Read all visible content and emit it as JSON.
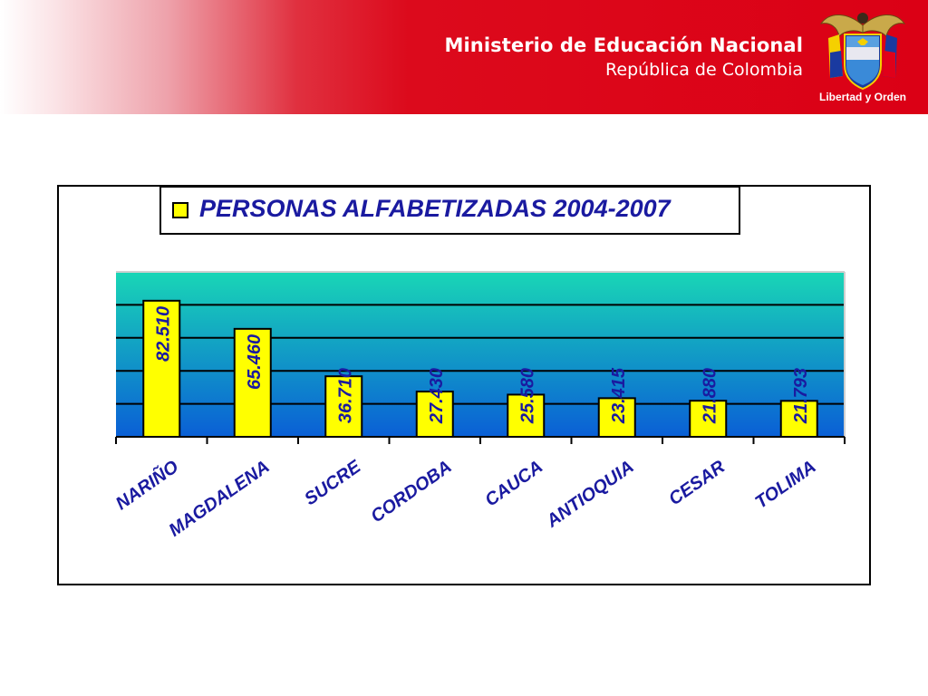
{
  "header": {
    "ministry_name": "Ministerio de Educación Nacional",
    "country": "República de Colombia",
    "motto": "Libertad y Orden",
    "emblem_icon": "colombia-coat-of-arms-icon",
    "colors": {
      "banner": "#db0015",
      "text": "#ffffff"
    }
  },
  "chart_data": {
    "type": "bar",
    "legend": "PERSONAS ALFABETIZADAS 2004-2007",
    "categories": [
      "NARIÑO",
      "MAGDALENA",
      "SUCRE",
      "CORDOBA",
      "CAUCA",
      "ANTIOQUIA",
      "CESAR",
      "TOLIMA"
    ],
    "series": [
      {
        "name": "PERSONAS ALFABETIZADAS 2004-2007",
        "values": [
          82510,
          65460,
          36710,
          27430,
          25580,
          23415,
          21880,
          21793
        ]
      }
    ],
    "data_labels": [
      "82.510",
      "65.460",
      "36.710",
      "27.430",
      "25.580",
      "23.415",
      "21.880",
      "21.793"
    ],
    "ylim": [
      0,
      100000
    ],
    "grid": true,
    "legend_position": "top",
    "colors": {
      "bar": "#ffff00",
      "bar_border": "#000000",
      "label": "#1a1aa0",
      "plot_top": "#19d6b6",
      "plot_bottom": "#0a5fd6"
    }
  }
}
